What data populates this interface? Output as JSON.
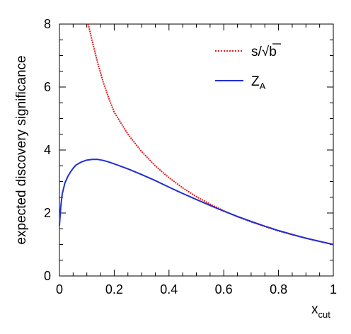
{
  "chart_data": {
    "type": "line",
    "title": "",
    "xlabel": {
      "main": "x",
      "sub": "cut"
    },
    "ylabel": "expected discovery significance",
    "xlim": [
      0,
      1
    ],
    "ylim": [
      0,
      8
    ],
    "x_ticks": [
      "0",
      "0.2",
      "0.4",
      "0.6",
      "0.8",
      "1"
    ],
    "y_ticks": [
      "0",
      "2",
      "4",
      "6",
      "8"
    ],
    "grid": false,
    "legend_position": "top-right",
    "series": [
      {
        "name": "s/√b",
        "legend_parts": {
          "pre": "s/",
          "radical": "√",
          "radicand": "b"
        },
        "color": "#e31a1c",
        "style": "dotted",
        "x": [
          0.105,
          0.12,
          0.14,
          0.16,
          0.18,
          0.2,
          0.25,
          0.3,
          0.35,
          0.4,
          0.45,
          0.5,
          0.55,
          0.6,
          0.65,
          0.7,
          0.75,
          0.8,
          0.85,
          0.9,
          0.95,
          1.0
        ],
        "y": [
          8.0,
          7.45,
          6.75,
          6.15,
          5.65,
          5.2,
          4.5,
          3.95,
          3.5,
          3.12,
          2.8,
          2.52,
          2.28,
          2.07,
          1.88,
          1.72,
          1.57,
          1.43,
          1.31,
          1.2,
          1.1,
          1.0
        ]
      },
      {
        "name": "Z_A",
        "legend_parts": {
          "main": "Z",
          "sub": "A"
        },
        "color": "#1f2fd0",
        "style": "solid",
        "x": [
          0.0,
          0.005,
          0.01,
          0.02,
          0.03,
          0.04,
          0.05,
          0.06,
          0.08,
          0.1,
          0.12,
          0.14,
          0.16,
          0.18,
          0.2,
          0.25,
          0.3,
          0.35,
          0.4,
          0.45,
          0.5,
          0.55,
          0.6,
          0.65,
          0.7,
          0.75,
          0.8,
          0.85,
          0.9,
          0.95,
          1.0
        ],
        "y": [
          1.6,
          2.2,
          2.6,
          2.95,
          3.15,
          3.3,
          3.42,
          3.52,
          3.62,
          3.68,
          3.7,
          3.7,
          3.67,
          3.62,
          3.56,
          3.4,
          3.22,
          3.03,
          2.82,
          2.62,
          2.43,
          2.24,
          2.06,
          1.89,
          1.73,
          1.58,
          1.44,
          1.32,
          1.2,
          1.1,
          1.0
        ]
      }
    ]
  }
}
